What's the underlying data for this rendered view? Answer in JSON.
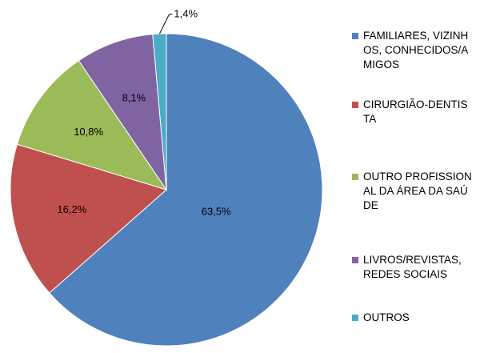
{
  "chart_data": {
    "type": "pie",
    "categories": [
      "FAMILIARES, VIZINHOS, CONHECIDOS/AMIGOS",
      "CIRURGIÃO-DENTISTA",
      "OUTRO PROFISSIONAL DA ÁREA DA SAÚDE",
      "LIVROS/REVISTAS, REDES SOCIAIS",
      "OUTROS"
    ],
    "values": [
      63.5,
      16.2,
      10.8,
      8.1,
      1.4
    ],
    "value_labels": [
      "63,5%",
      "16,2%",
      "10,8%",
      "8,1%",
      "1,4%"
    ],
    "colors": [
      "#4f81bd",
      "#c0504d",
      "#9bbb59",
      "#8064a2",
      "#4bacc6"
    ],
    "legend": "right"
  }
}
